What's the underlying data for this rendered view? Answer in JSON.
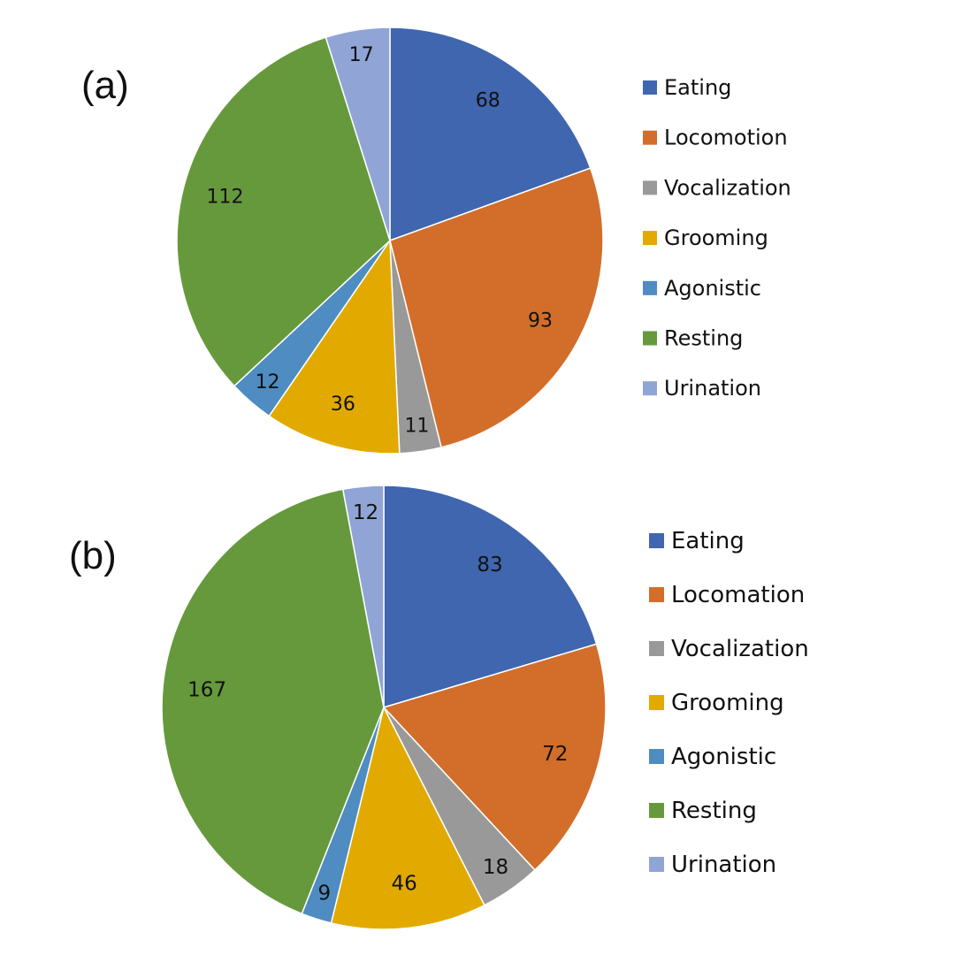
{
  "chart_data": [
    {
      "type": "pie",
      "panel_label": "(a)",
      "categories": [
        "Eating",
        "Locomotion",
        "Vocalization",
        "Grooming",
        "Agonistic",
        "Resting",
        "Urination"
      ],
      "values": [
        68,
        93,
        11,
        36,
        12,
        112,
        17
      ],
      "data_labels": [
        "68",
        "93",
        "11",
        "36",
        "12",
        "112",
        "17"
      ],
      "colors": [
        "#3f66ae",
        "#d26e2a",
        "#999999",
        "#e2aa00",
        "#4e8cc2",
        "#66993c",
        "#90a5d5"
      ],
      "legend_position": "right"
    },
    {
      "type": "pie",
      "panel_label": "(b)",
      "categories": [
        "Eating",
        "Locomation",
        "Vocalization",
        "Grooming",
        "Agonistic",
        "Resting",
        "Urination"
      ],
      "values": [
        83,
        72,
        18,
        46,
        9,
        167,
        12
      ],
      "data_labels": [
        "83",
        "72",
        "18",
        "46",
        "9",
        "167",
        "12"
      ],
      "colors": [
        "#3f66ae",
        "#d26e2a",
        "#999999",
        "#e2aa00",
        "#4e8cc2",
        "#66993c",
        "#90a5d5"
      ],
      "legend_position": "right"
    }
  ]
}
